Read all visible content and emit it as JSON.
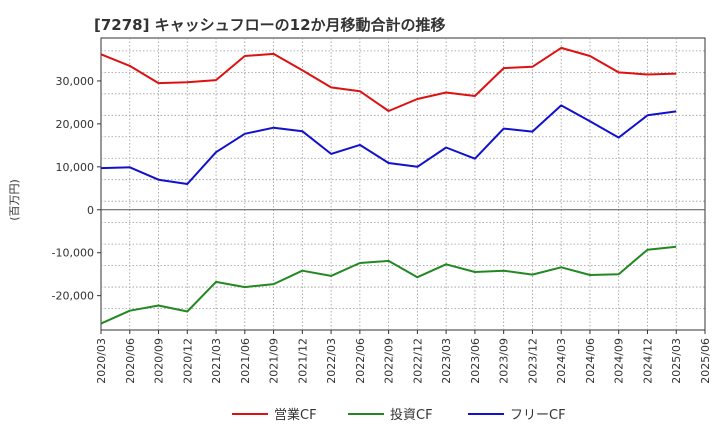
{
  "chart_data": {
    "type": "line",
    "title": "[7278]  キャッシュフローの12か月移動合計の推移",
    "ylabel": "(百万円)",
    "xlabel": "",
    "ylim": [
      -28000,
      40000
    ],
    "yticks": [
      -20000,
      -10000,
      0,
      10000,
      20000,
      30000
    ],
    "ytick_labels": [
      "-20,000",
      "-10,000",
      "0",
      "10,000",
      "20,000",
      "30,000"
    ],
    "x": [
      "2020/03",
      "2020/06",
      "2020/09",
      "2020/12",
      "2021/03",
      "2021/06",
      "2021/09",
      "2021/12",
      "2022/03",
      "2022/06",
      "2022/09",
      "2022/12",
      "2023/03",
      "2023/06",
      "2023/09",
      "2023/12",
      "2024/03",
      "2024/06",
      "2024/09",
      "2024/12",
      "2025/03",
      "2025/06"
    ],
    "grid": true,
    "legend_position": "bottom",
    "series": [
      {
        "name": "営業CF",
        "color": "#dd1111",
        "values": [
          36200,
          33500,
          29500,
          29700,
          30200,
          35800,
          36300,
          32500,
          28500,
          27600,
          23000,
          25800,
          27300,
          26500,
          33000,
          33300,
          37700,
          35800,
          32000,
          31500,
          31700,
          null
        ]
      },
      {
        "name": "投資CF",
        "color": "#228822",
        "values": [
          -26500,
          -23500,
          -22300,
          -23700,
          -16800,
          -18000,
          -17300,
          -14200,
          -15400,
          -12400,
          -11900,
          -15700,
          -12700,
          -14500,
          -14200,
          -15100,
          -13400,
          -15200,
          -15000,
          -9300,
          -8600,
          null
        ]
      },
      {
        "name": "フリーCF",
        "color": "#1111cc",
        "values": [
          9700,
          9900,
          7000,
          6000,
          13400,
          17700,
          19100,
          18300,
          13000,
          15100,
          10900,
          10000,
          14500,
          11900,
          18900,
          18200,
          24300,
          20600,
          16800,
          22000,
          22900,
          null
        ]
      }
    ]
  }
}
